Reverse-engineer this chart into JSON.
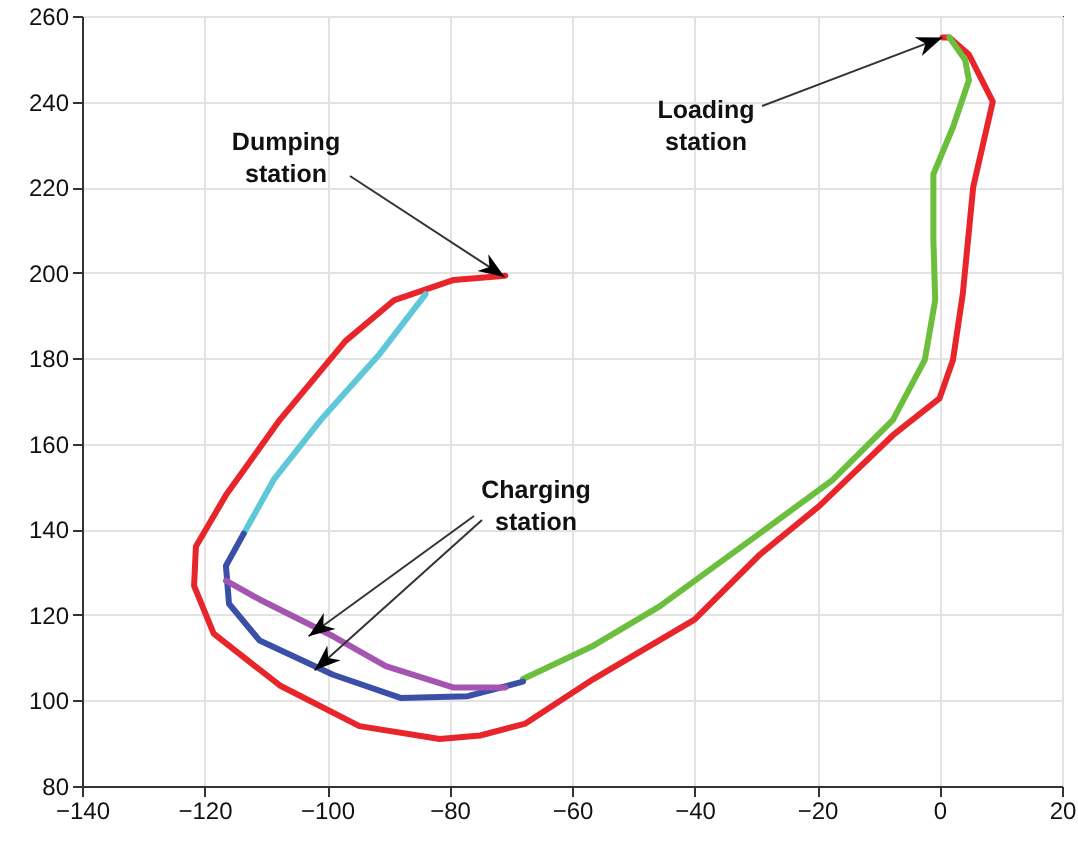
{
  "chart_data": {
    "type": "line",
    "xlim": [
      -140,
      20
    ],
    "ylim": [
      80,
      260
    ],
    "xticks": [
      -140,
      -120,
      -100,
      -80,
      -60,
      -40,
      -20,
      0,
      20
    ],
    "yticks": [
      80,
      100,
      120,
      140,
      160,
      180,
      200,
      220,
      240,
      260
    ],
    "grid": true,
    "line_style": "solid",
    "marker": "none",
    "series": [
      {
        "color": "#e8252a",
        "x": [
          0.5,
          1.6,
          4.8,
          8.7,
          5.5,
          3.8,
          2.2,
          0,
          -7.6,
          -19.6,
          -29.4,
          -40,
          -56.5,
          -67.6,
          -75,
          -81.6,
          -94.7,
          -107.7,
          -118.5,
          -121.7,
          -121.4,
          -116.5,
          -107.7,
          -97,
          -89,
          -79.3,
          -70.9
        ],
        "values": [
          255,
          255,
          251,
          240,
          220,
          195,
          179.6,
          170.6,
          162,
          145.5,
          134,
          118.9,
          105,
          94.6,
          91.8,
          91,
          94,
          103.5,
          115.6,
          126.8,
          136,
          148,
          165.6,
          184,
          193.6,
          198.3,
          199.3
        ]
      },
      {
        "color": "#6cbf3c",
        "x": [
          -68,
          -56.5,
          -45.7,
          -29.4,
          -17.4,
          -7.6,
          -2.4,
          -0.7,
          -1,
          -1,
          2.2,
          4.8,
          4.2,
          1.6
        ],
        "values": [
          105,
          112.8,
          122,
          139,
          151.6,
          165.6,
          179.6,
          193.6,
          207.7,
          223,
          234,
          245,
          249.7,
          255
        ]
      },
      {
        "color": "#5fc8d8",
        "x": [
          -83.9,
          -91.4,
          -101,
          -108.7,
          -113.6
        ],
        "values": [
          195,
          181,
          165.6,
          151.6,
          139
        ]
      },
      {
        "color": "#3a4fa8",
        "x": [
          -113.6,
          -116.5,
          -116,
          -111,
          -99,
          -88,
          -77,
          -68
        ],
        "values": [
          139,
          131.5,
          122.6,
          114,
          106,
          100.6,
          101,
          104.4
        ]
      },
      {
        "color": "#a455b0",
        "x": [
          -116.5,
          -111,
          -99,
          -90.4,
          -79.3,
          -70.9
        ],
        "values": [
          128,
          123.6,
          115,
          108,
          103,
          103
        ]
      }
    ],
    "annotations": [
      {
        "text": "Dumping station",
        "x": -71,
        "y": 199
      },
      {
        "text": "Loading station",
        "x": 0.5,
        "y": 255
      },
      {
        "text": "Charging station",
        "x": -103,
        "y": 115
      }
    ]
  }
}
